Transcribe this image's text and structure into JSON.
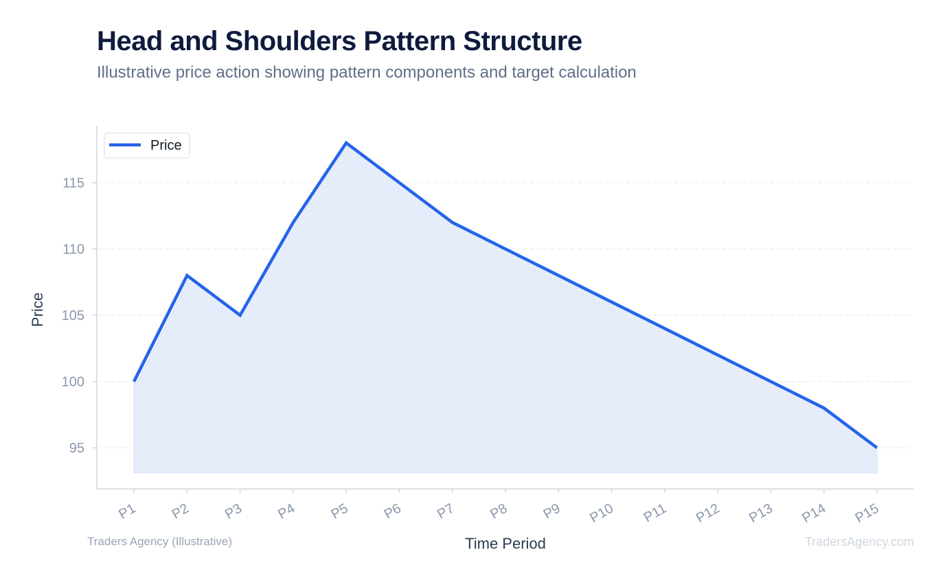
{
  "header": {
    "title": "Head and Shoulders Pattern Structure",
    "subtitle": "Illustrative price action showing pattern components and target calculation"
  },
  "footer": {
    "source": "Traders Agency (Illustrative)",
    "brand": "TradersAgency.com"
  },
  "colors": {
    "line": "#2563eb",
    "fill": "#e5edfb",
    "grid": "#e5e9f0",
    "axis": "#cfd5df"
  },
  "chart_data": {
    "type": "area",
    "title": "Head and Shoulders Pattern Structure",
    "subtitle": "Illustrative price action showing pattern components and target calculation",
    "xlabel": "Time Period",
    "ylabel": "Price",
    "categories": [
      "P1",
      "P2",
      "P3",
      "P4",
      "P5",
      "P6",
      "P7",
      "P8",
      "P9",
      "P10",
      "P11",
      "P12",
      "P13",
      "P14",
      "P15"
    ],
    "series": [
      {
        "name": "Price",
        "values": [
          100,
          108,
          105,
          112,
          118,
          115,
          112,
          110,
          108,
          106,
          104,
          102,
          100,
          98,
          95
        ]
      }
    ],
    "yticks": [
      95,
      100,
      105,
      110,
      115
    ],
    "ylim": [
      91.9,
      119.3
    ],
    "fill_baseline": 93.1,
    "grid": true,
    "legend": "top-left"
  }
}
